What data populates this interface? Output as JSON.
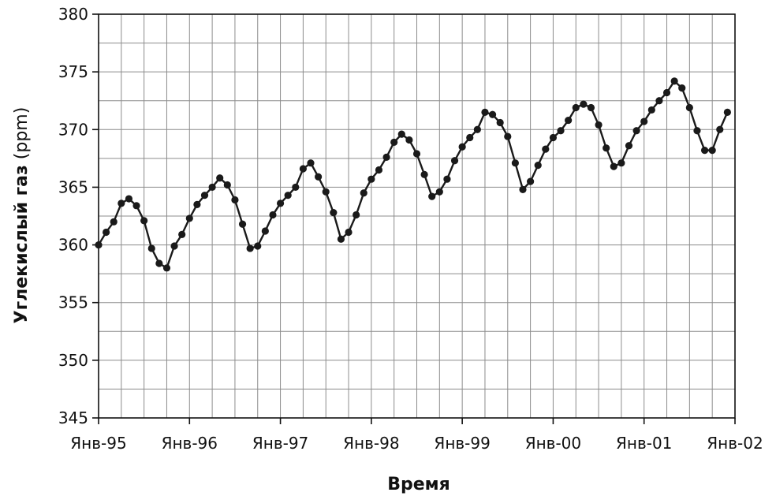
{
  "chart_data": {
    "type": "line",
    "xlabel": "Время",
    "ylabel_bold": "Углекислый газ",
    "ylabel_unit": "(ppm)",
    "ylim": [
      345,
      380
    ],
    "y_ticks": [
      "380",
      "375",
      "370",
      "365",
      "360",
      "355",
      "350",
      "345"
    ],
    "x_tick_labels": [
      "Янв-95",
      "Янв-96",
      "Янв-97",
      "Янв-98",
      "Янв-99",
      "Янв-00",
      "Янв-01",
      "Янв-02"
    ],
    "x_tick_years": [
      1995,
      1996,
      1997,
      1998,
      1999,
      2000,
      2001,
      2002
    ],
    "grid": true,
    "line_color": "#1a1a1a",
    "grid_color": "#8c8c8c",
    "series": [
      {
        "points": [
          [
            "1995-01",
            360.0
          ],
          [
            "1995-02",
            361.1
          ],
          [
            "1995-03",
            362.0
          ],
          [
            "1995-04",
            363.6
          ],
          [
            "1995-05",
            364.0
          ],
          [
            "1995-06",
            363.4
          ],
          [
            "1995-07",
            362.1
          ],
          [
            "1995-08",
            359.7
          ],
          [
            "1995-09",
            358.4
          ],
          [
            "1995-10",
            358.0
          ],
          [
            "1995-11",
            359.9
          ],
          [
            "1995-12",
            360.9
          ],
          [
            "1996-01",
            362.3
          ],
          [
            "1996-02",
            363.5
          ],
          [
            "1996-03",
            364.3
          ],
          [
            "1996-04",
            365.0
          ],
          [
            "1996-05",
            365.8
          ],
          [
            "1996-06",
            365.2
          ],
          [
            "1996-07",
            363.9
          ],
          [
            "1996-08",
            361.8
          ],
          [
            "1996-09",
            359.7
          ],
          [
            "1996-10",
            359.9
          ],
          [
            "1996-11",
            361.2
          ],
          [
            "1996-12",
            362.6
          ],
          [
            "1997-01",
            363.6
          ],
          [
            "1997-02",
            364.3
          ],
          [
            "1997-03",
            365.0
          ],
          [
            "1997-04",
            366.6
          ],
          [
            "1997-05",
            367.1
          ],
          [
            "1997-06",
            365.9
          ],
          [
            "1997-07",
            364.6
          ],
          [
            "1997-08",
            362.8
          ],
          [
            "1997-09",
            360.5
          ],
          [
            "1997-10",
            361.1
          ],
          [
            "1997-11",
            362.6
          ],
          [
            "1997-12",
            364.5
          ],
          [
            "1998-01",
            365.7
          ],
          [
            "1998-02",
            366.5
          ],
          [
            "1998-03",
            367.6
          ],
          [
            "1998-04",
            368.9
          ],
          [
            "1998-05",
            369.6
          ],
          [
            "1998-06",
            369.1
          ],
          [
            "1998-07",
            367.9
          ],
          [
            "1998-08",
            366.1
          ],
          [
            "1998-09",
            364.2
          ],
          [
            "1998-10",
            364.6
          ],
          [
            "1998-11",
            365.7
          ],
          [
            "1998-12",
            367.3
          ],
          [
            "1999-01",
            368.5
          ],
          [
            "1999-02",
            369.3
          ],
          [
            "1999-03",
            370.0
          ],
          [
            "1999-04",
            371.5
          ],
          [
            "1999-05",
            371.3
          ],
          [
            "1999-06",
            370.6
          ],
          [
            "1999-07",
            369.4
          ],
          [
            "1999-08",
            367.1
          ],
          [
            "1999-09",
            364.8
          ],
          [
            "1999-10",
            365.5
          ],
          [
            "1999-11",
            366.9
          ],
          [
            "1999-12",
            368.3
          ],
          [
            "2000-01",
            369.3
          ],
          [
            "2000-02",
            369.9
          ],
          [
            "2000-03",
            370.8
          ],
          [
            "2000-04",
            371.9
          ],
          [
            "2000-05",
            372.2
          ],
          [
            "2000-06",
            371.9
          ],
          [
            "2000-07",
            370.4
          ],
          [
            "2000-08",
            368.4
          ],
          [
            "2000-09",
            366.8
          ],
          [
            "2000-10",
            367.1
          ],
          [
            "2000-11",
            368.6
          ],
          [
            "2000-12",
            369.9
          ],
          [
            "2001-01",
            370.7
          ],
          [
            "2001-02",
            371.7
          ],
          [
            "2001-03",
            372.5
          ],
          [
            "2001-04",
            373.2
          ],
          [
            "2001-05",
            374.2
          ],
          [
            "2001-06",
            373.6
          ],
          [
            "2001-07",
            371.9
          ],
          [
            "2001-08",
            369.9
          ],
          [
            "2001-09",
            368.2
          ],
          [
            "2001-10",
            368.2
          ],
          [
            "2001-11",
            370.0
          ],
          [
            "2001-12",
            371.5
          ]
        ]
      }
    ]
  }
}
